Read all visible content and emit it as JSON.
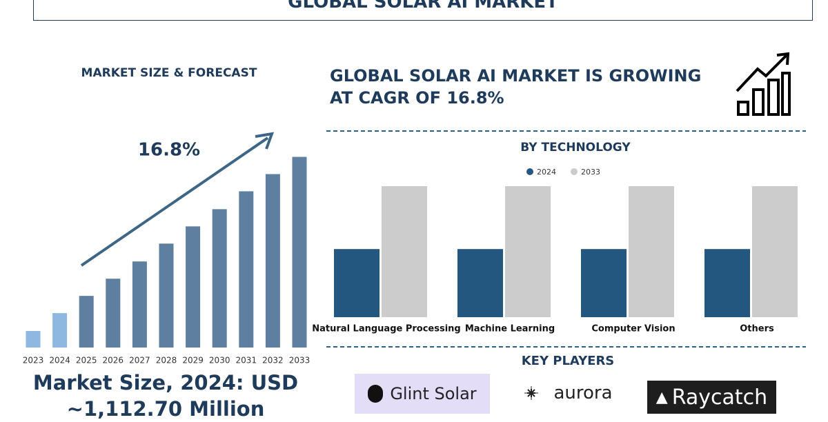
{
  "header": {
    "title": "GLOBAL SOLAR AI MARKET"
  },
  "cagr_text": "GLOBAL SOLAR AI MARKET IS GROWING AT CAGR OF 16.8%",
  "market_size": "Market Size, 2024: USD ~1,112.70 Million",
  "chart_data": [
    {
      "type": "bar",
      "title": "MARKET SIZE & FORECAST",
      "annotation": "16.8%",
      "categories": [
        "2023",
        "2024",
        "2025",
        "2026",
        "2027",
        "2028",
        "2029",
        "2030",
        "2031",
        "2032",
        "2033"
      ],
      "values": [
        25,
        52,
        78,
        104,
        130,
        157,
        183,
        209,
        236,
        262,
        288
      ],
      "colors": [
        "#8fb8e0",
        "#8fb8e0",
        "#5f7fa0",
        "#5f7fa0",
        "#5f7fa0",
        "#5f7fa0",
        "#5f7fa0",
        "#5f7fa0",
        "#5f7fa0",
        "#5f7fa0",
        "#5f7fa0"
      ],
      "ylim": [
        0,
        300
      ]
    },
    {
      "type": "grouped_bar",
      "title": "BY TECHNOLOGY",
      "categories": [
        "Natural Language Processing",
        "Machine Learning",
        "Computer Vision",
        "Others"
      ],
      "series": [
        {
          "name": "2024",
          "color": "#24577f",
          "values": [
            52,
            52,
            52,
            52
          ]
        },
        {
          "name": "2033",
          "color": "#cccccc",
          "values": [
            100,
            100,
            100,
            100
          ]
        }
      ],
      "ylim": [
        0,
        100
      ],
      "legend": "top"
    }
  ],
  "key_players": {
    "title": "KEY PLAYERS",
    "players": [
      "Glint Solar",
      "aurora",
      "Raycatch"
    ]
  }
}
